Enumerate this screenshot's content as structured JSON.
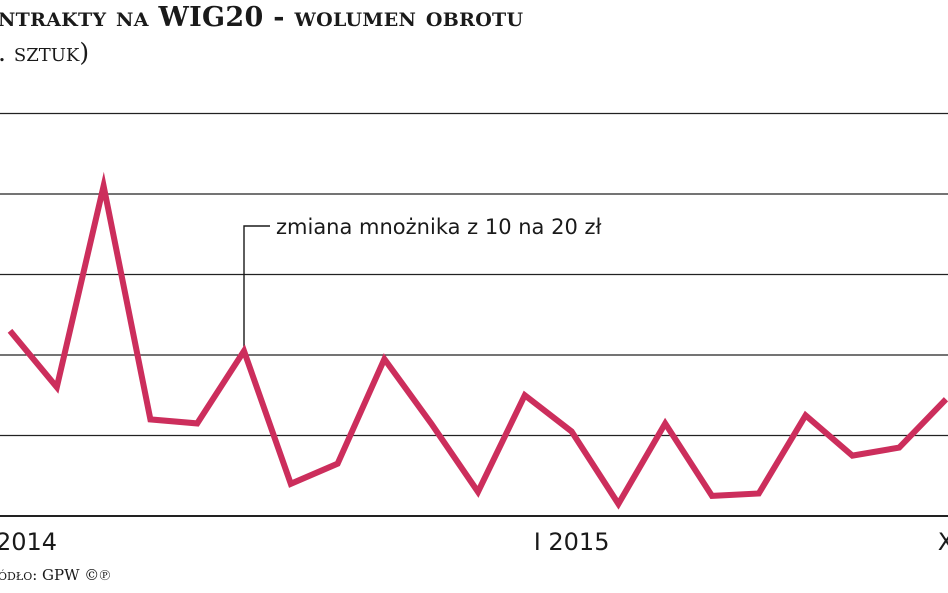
{
  "header": {
    "title": "ntrakty na WIG20 - wolumen obrotu",
    "subtitle": ". sztuk)"
  },
  "source": "ódło: GPW ©℗",
  "colors": {
    "line": "#cc2e5c",
    "grid": "#222222",
    "text": "#1a1a1a"
  },
  "chart_data": {
    "type": "line",
    "title": "",
    "xlabel": "",
    "ylabel": "",
    "x_tick_labels": [
      {
        "index": 0,
        "label": "2014"
      },
      {
        "index": 12,
        "label": "I 2015"
      },
      {
        "index": 20,
        "label": "X"
      }
    ],
    "annotation": {
      "index": 5,
      "text": "zmiana mnożnika z 10 na 20 zł"
    },
    "grid": true,
    "ylim": [
      0,
      5
    ],
    "series": [
      {
        "values": [
          2.3,
          1.6,
          4.1,
          1.2,
          1.15,
          2.05,
          0.4,
          0.65,
          1.95,
          1.15,
          0.3,
          1.5,
          1.05,
          0.15,
          1.15,
          0.25,
          0.28,
          1.25,
          0.75,
          0.85,
          1.45
        ]
      }
    ]
  }
}
